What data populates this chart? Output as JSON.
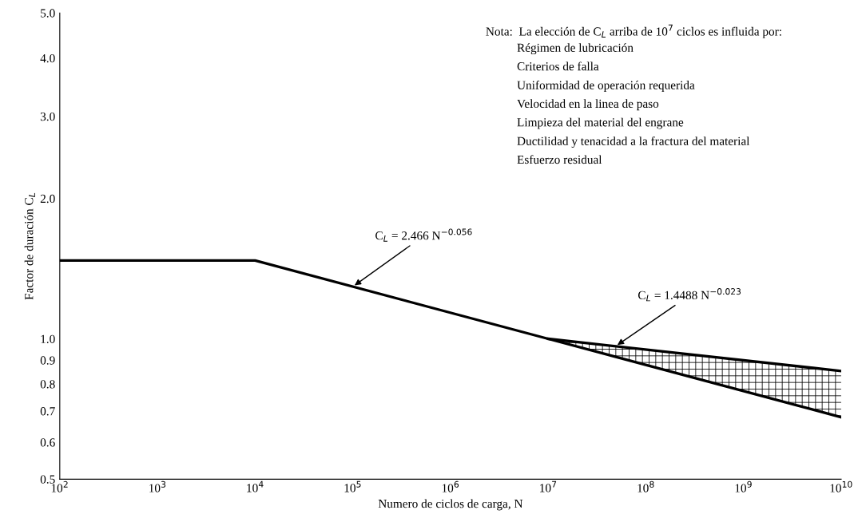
{
  "chart_data": {
    "type": "line",
    "xlabel": "Numero de ciclos de carga, N",
    "ylabel": "Factor de duración C$_{L}$",
    "log": "xy",
    "xlim": [
      100,
      10000000000
    ],
    "xticks": [
      {
        "value": 100,
        "label": "10$^{2}$"
      },
      {
        "value": 1000,
        "label": "10$^{3}$"
      },
      {
        "value": 10000,
        "label": "10$^{4}$"
      },
      {
        "value": 100000,
        "label": "10$^{5}$"
      },
      {
        "value": 1000000,
        "label": "10$^{6}$"
      },
      {
        "value": 10000000,
        "label": "10$^{7}$"
      },
      {
        "value": 100000000,
        "label": "10$^{8}$"
      },
      {
        "value": 1000000000,
        "label": "10$^{9}$"
      },
      {
        "value": 10000000000,
        "label": "10$^{10}$"
      }
    ],
    "ylim": [
      0.5,
      5.0
    ],
    "yticks": [
      {
        "value": 0.5,
        "label": "0.5"
      },
      {
        "value": 0.6,
        "label": "0.6"
      },
      {
        "value": 0.7,
        "label": "0.7"
      },
      {
        "value": 0.8,
        "label": "0.8"
      },
      {
        "value": 0.9,
        "label": "0.9"
      },
      {
        "value": 1.0,
        "label": "1.0"
      },
      {
        "value": 2.0,
        "label": "2.0"
      },
      {
        "value": 3.0,
        "label": "3.0"
      },
      {
        "value": 4.0,
        "label": "4.0"
      },
      {
        "value": 5.0,
        "label": "5.0"
      }
    ],
    "grid": false,
    "series": [
      {
        "color": "#000000",
        "x": [
          100,
          10000,
          10000000,
          10000000000
        ],
        "values": [
          1.472,
          1.472,
          1.0,
          0.679
        ]
      },
      {
        "color": "#000000",
        "x": [
          10000000,
          10000000000
        ],
        "values": [
          1.0,
          0.853
        ],
        "lower": [
          1.0,
          0.679
        ],
        "upper": [
          1.0,
          0.853
        ]
      }
    ],
    "annotations": [
      {
        "text": "C$_{L}$ = 2.466 N$^{−0.056}$",
        "x": 100000,
        "y": 1.294
      },
      {
        "text": "C$_{L}$ = 1.4488 N$^{−0.023}$",
        "x": 49000000,
        "y": 0.964
      },
      "Nota:  La elección de C$_{L}$ arriba de 10$^{7}$ ciclos es influida por:",
      "Régimen de lubricación",
      "Criterios de falla",
      "Uniformidad de operación requerida",
      "Velocidad en la linea de paso",
      "Limpieza del material del engrane",
      "Ductilidad y tenacidad a la fractura del material",
      "Esfuerzo residual"
    ]
  }
}
